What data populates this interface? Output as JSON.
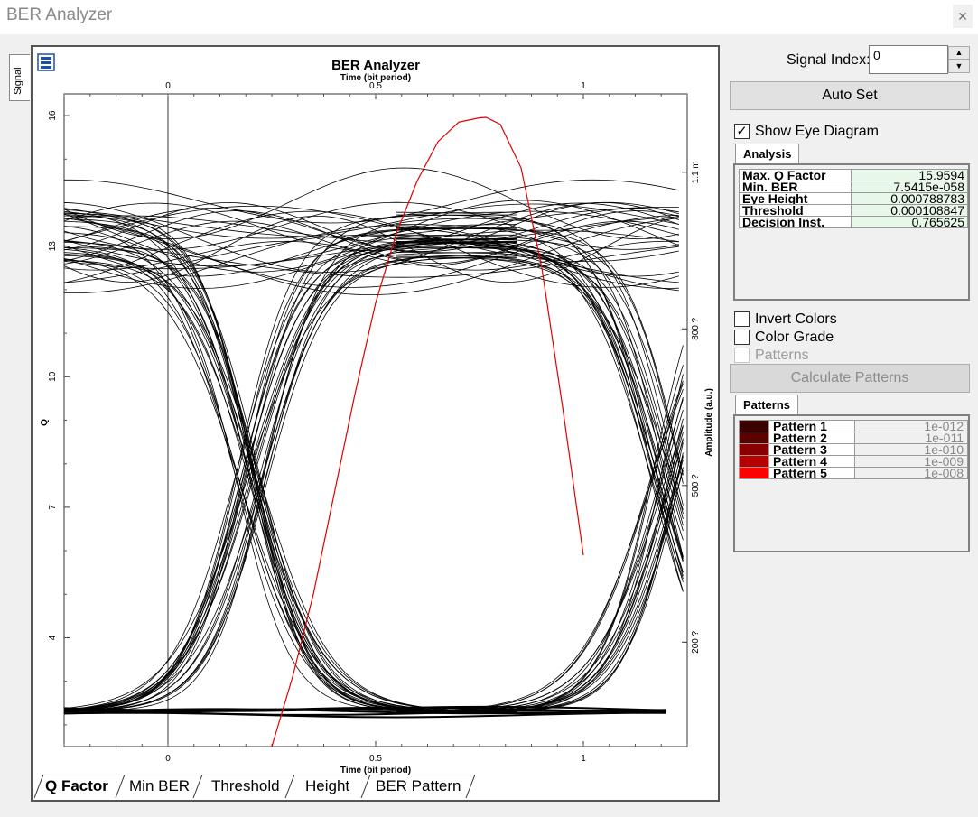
{
  "window": {
    "title": "BER Analyzer",
    "close_label": "✕"
  },
  "side_tab": {
    "label": "Signal"
  },
  "chart": {
    "title": "BER Analyzer",
    "bottom_tabs": [
      "Q Factor",
      "Min BER",
      "Threshold",
      "Height",
      "BER Pattern"
    ],
    "active_tab": "Q Factor"
  },
  "chart_data": {
    "type": "line",
    "title": "BER Analyzer",
    "xlabel": "Time (bit period)",
    "ylabel_left": "Q",
    "ylabel_right": "Amplitude (a.u.)",
    "x_ticks": [
      "0",
      "0.5",
      "1"
    ],
    "x_range": [
      -0.25,
      1.25
    ],
    "y_left_ticks": [
      "4",
      "7",
      "10",
      "13",
      "16"
    ],
    "y_left_range": [
      1.5,
      16.5
    ],
    "y_right_ticks": [
      "200 ?",
      "500 ?",
      "800 ?",
      "1.1 m"
    ],
    "q_curve": {
      "color": "#e00000",
      "x": [
        0.25,
        0.3,
        0.35,
        0.4,
        0.45,
        0.5,
        0.55,
        0.6,
        0.65,
        0.7,
        0.75,
        0.7656,
        0.8,
        0.85,
        0.9,
        0.95,
        1.0
      ],
      "y": [
        1.5,
        3.1,
        5.0,
        7.3,
        9.6,
        11.7,
        13.3,
        14.5,
        15.4,
        15.85,
        15.95,
        15.96,
        15.8,
        14.8,
        12.5,
        9.3,
        5.9
      ]
    },
    "eye_color": "#000000",
    "grid": false
  },
  "panel": {
    "signal_index_label": "Signal Index:",
    "signal_index_value": "0",
    "auto_set_label": "Auto Set",
    "show_eye_label": "Show Eye Diagram",
    "show_eye_checked": "✓",
    "analysis_tab": "Analysis",
    "analysis": [
      {
        "key": "Max. Q Factor",
        "value": "15.9594"
      },
      {
        "key": "Min. BER",
        "value": "7.5415e-058"
      },
      {
        "key": "Eye Height",
        "value": "0.000788783"
      },
      {
        "key": "Threshold",
        "value": "0.000108847"
      },
      {
        "key": "Decision Inst.",
        "value": "0.765625"
      }
    ],
    "invert_colors_label": "Invert Colors",
    "color_grade_label": "Color Grade",
    "patterns_check_label": "Patterns",
    "calculate_patterns_label": "Calculate Patterns",
    "patterns_tab": "Patterns",
    "patterns": [
      {
        "name": "Pattern 1",
        "value": "1e-012",
        "color": "#3a0000"
      },
      {
        "name": "Pattern 2",
        "value": "1e-011",
        "color": "#5c0000"
      },
      {
        "name": "Pattern 3",
        "value": "1e-010",
        "color": "#8a0000"
      },
      {
        "name": "Pattern 4",
        "value": "1e-009",
        "color": "#b80000"
      },
      {
        "name": "Pattern 5",
        "value": "1e-008",
        "color": "#ff0000"
      }
    ]
  }
}
